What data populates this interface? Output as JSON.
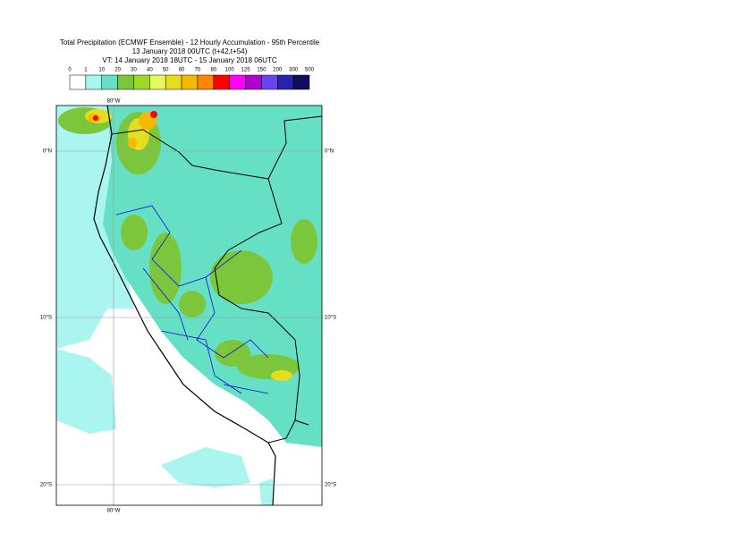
{
  "title": {
    "line1": "Total Precipitation (ECMWF Ensemble) - 12 Hourly Accumulation - 95th Percentile",
    "line2": "13 January 2018 00UTC (t+42,t+54)",
    "line3": "VT: 14 January 2018 18UTC - 15 January 2018 06UTC"
  },
  "legend": {
    "labels": [
      0,
      1,
      10,
      20,
      30,
      40,
      50,
      60,
      70,
      80,
      100,
      125,
      150,
      200,
      300,
      500
    ],
    "colors": [
      "#ffffff",
      "#aaf5f0",
      "#66e0c4",
      "#7cc63c",
      "#9ed82a",
      "#e8f860",
      "#e4de1e",
      "#f6b800",
      "#ff8400",
      "#ff0000",
      "#ff00ff",
      "#b000d0",
      "#6a44f2",
      "#2424b0",
      "#0e0e5c"
    ]
  },
  "grid": {
    "longitude": "80°W",
    "latitudes": [
      "0°N",
      "10°S",
      "20°S"
    ]
  }
}
